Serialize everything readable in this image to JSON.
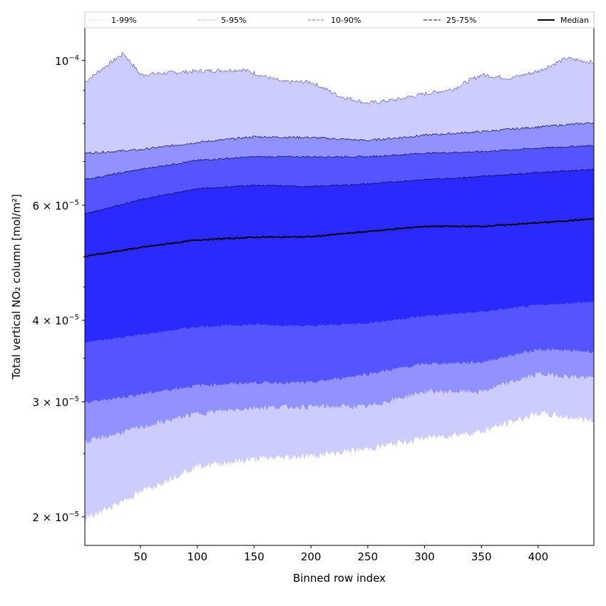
{
  "chart_data": {
    "type": "area",
    "title": "",
    "xlabel": "Binned row index",
    "ylabel": "Total vertical NO₂ column [mol/m²]",
    "xlim": [
      1,
      449
    ],
    "ylim": [
      1.808e-05,
      0.0001122
    ],
    "yscale": "log",
    "y_unit_multiplier": 1e-05,
    "xticks": [
      50,
      100,
      150,
      200,
      250,
      300,
      350,
      400
    ],
    "yticks": [
      {
        "value": 0.0001,
        "label": "10",
        "exp": "−4"
      },
      {
        "value": 6e-05,
        "label": "6 × 10",
        "exp": "−5"
      },
      {
        "value": 4e-05,
        "label": "4 × 10",
        "exp": "−5"
      },
      {
        "value": 3e-05,
        "label": "3 × 10",
        "exp": "−5"
      },
      {
        "value": 2e-05,
        "label": "2 × 10",
        "exp": "−5"
      }
    ],
    "legend_position": "top (above plot, horizontal)",
    "bands": [
      {
        "name": "1-99%",
        "color": "#ccccff",
        "lower": "p1",
        "upper": "p99"
      },
      {
        "name": "5-95%",
        "color": "#9191ff",
        "lower": "p5",
        "upper": "p95"
      },
      {
        "name": "10-90%",
        "color": "#5555ff",
        "lower": "p10",
        "upper": "p90"
      },
      {
        "name": "25-75%",
        "color": "#2a2aff",
        "lower": "p25",
        "upper": "p75"
      }
    ],
    "median": {
      "name": "Median",
      "color": "#000000"
    },
    "x": [
      1,
      50,
      100,
      150,
      200,
      250,
      300,
      350,
      400,
      449
    ],
    "series": {
      "p99": {
        "x": [
          1,
          35,
          50,
          100,
          140,
          175,
          200,
          225,
          250,
          275,
          300,
          325,
          350,
          375,
          400,
          425,
          449
        ],
        "y": [
          9.27,
          10.25,
          9.51,
          9.63,
          9.68,
          9.27,
          9.27,
          8.82,
          8.6,
          8.71,
          8.89,
          9.04,
          9.51,
          9.39,
          9.63,
          10.08,
          9.92
        ]
      },
      "p95": {
        "y": [
          7.21,
          7.3,
          7.49,
          7.64,
          7.62,
          7.54,
          7.68,
          7.78,
          7.91,
          8.03
        ]
      },
      "p90": {
        "y": [
          6.57,
          6.81,
          7.03,
          7.12,
          7.12,
          7.12,
          7.21,
          7.25,
          7.34,
          7.41
        ]
      },
      "p75": {
        "y": [
          5.82,
          6.12,
          6.36,
          6.44,
          6.41,
          6.47,
          6.57,
          6.64,
          6.74,
          6.81
        ]
      },
      "p50": {
        "y": [
          5.01,
          5.17,
          5.31,
          5.36,
          5.37,
          5.47,
          5.57,
          5.57,
          5.64,
          5.72
        ]
      },
      "p25": {
        "y": [
          3.7,
          3.8,
          3.91,
          3.94,
          3.92,
          3.96,
          4.06,
          4.12,
          4.22,
          4.27
        ]
      },
      "p10": {
        "y": [
          2.99,
          3.08,
          3.18,
          3.21,
          3.21,
          3.31,
          3.43,
          3.45,
          3.61,
          3.58
        ]
      },
      "p5": {
        "y": [
          2.6,
          2.74,
          2.88,
          2.94,
          2.95,
          2.95,
          3.11,
          3.11,
          3.31,
          3.26
        ]
      },
      "p1": {
        "y": [
          1.98,
          2.18,
          2.39,
          2.45,
          2.48,
          2.54,
          2.64,
          2.7,
          2.88,
          2.81
        ]
      }
    },
    "legend": [
      "1-99%",
      "5-95%",
      "10-90%",
      "25-75%",
      "Median"
    ]
  }
}
